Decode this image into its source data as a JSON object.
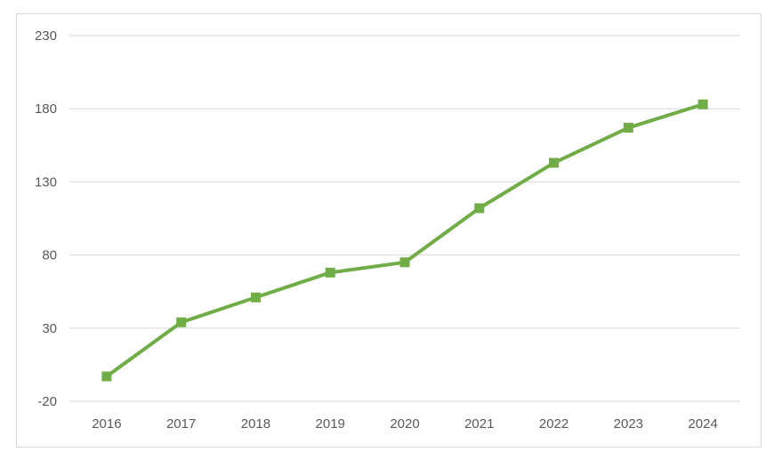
{
  "chart_data": {
    "type": "line",
    "title": "",
    "xlabel": "",
    "ylabel": "",
    "categories": [
      "2016",
      "2017",
      "2018",
      "2019",
      "2020",
      "2021",
      "2022",
      "2023",
      "2024"
    ],
    "series": [
      {
        "values": [
          -3,
          34,
          51,
          68,
          75,
          112,
          143,
          167,
          183
        ],
        "color": "#70ad47",
        "marker": "square"
      }
    ],
    "ylim": [
      -20,
      230
    ],
    "yticks": [
      "-20",
      "30",
      "80",
      "130",
      "180",
      "230"
    ],
    "grid": true,
    "legend": "none"
  }
}
